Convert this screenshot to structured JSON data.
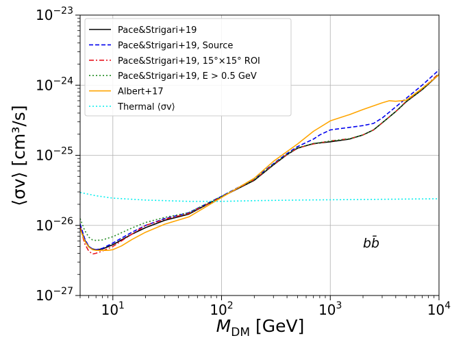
{
  "chart_data": {
    "type": "line",
    "xlabel": "M_DM [GeV]",
    "ylabel": "⟨σv⟩ [cm³/s]",
    "xscale": "log",
    "yscale": "log",
    "xlim": [
      5,
      10000
    ],
    "ylim": [
      1e-27,
      1e-23
    ],
    "grid": true,
    "legend_position": "top-left",
    "annotation": "bb̄",
    "x_ticks": [
      {
        "value": 10,
        "base": "10",
        "exp": "1"
      },
      {
        "value": 100,
        "base": "10",
        "exp": "2"
      },
      {
        "value": 1000,
        "base": "10",
        "exp": "3"
      },
      {
        "value": 10000,
        "base": "10",
        "exp": "4"
      }
    ],
    "y_ticks": [
      {
        "value": 1e-27,
        "base": "10",
        "exp": "−27"
      },
      {
        "value": 1e-26,
        "base": "10",
        "exp": "−26"
      },
      {
        "value": 1e-25,
        "base": "10",
        "exp": "−25"
      },
      {
        "value": 1e-24,
        "base": "10",
        "exp": "−24"
      },
      {
        "value": 1e-23,
        "base": "10",
        "exp": "−23"
      }
    ],
    "series": [
      {
        "name": "Pace&Strigari+19",
        "color": "#000000",
        "dash": "",
        "x": [
          5,
          5.5,
          6,
          6.5,
          7,
          8,
          10,
          15,
          20,
          30,
          50,
          100,
          200,
          300,
          400,
          500,
          700,
          1000,
          1500,
          2000,
          2500,
          3000,
          4000,
          5000,
          7000,
          10000
        ],
        "y": [
          9.5e-27,
          6.2e-27,
          5e-27,
          4.6e-27,
          4.5e-27,
          4.6e-27,
          5.3e-27,
          7.5e-27,
          9.3e-27,
          1.18e-26,
          1.45e-26,
          2.55e-26,
          4.4e-26,
          7.3e-26,
          1.02e-25,
          1.26e-25,
          1.47e-25,
          1.56e-25,
          1.7e-25,
          1.95e-25,
          2.3e-25,
          2.9e-25,
          4.2e-25,
          5.8e-25,
          8.6e-25,
          1.42e-24
        ]
      },
      {
        "name": "Pace&Strigari+19, Source",
        "color": "#0000ee",
        "dash": "6,3",
        "x": [
          5,
          5.5,
          6,
          6.5,
          7,
          8,
          10,
          15,
          20,
          30,
          50,
          100,
          200,
          300,
          400,
          500,
          700,
          800,
          1000,
          1500,
          2000,
          2500,
          3000,
          4000,
          5000,
          7000,
          10000
        ],
        "y": [
          1.05e-26,
          6.5e-27,
          5e-27,
          4.6e-27,
          4.5e-27,
          4.7e-27,
          5.6e-27,
          8e-27,
          1e-26,
          1.25e-26,
          1.52e-26,
          2.6e-26,
          4.6e-26,
          7.6e-26,
          1.06e-25,
          1.33e-25,
          1.7e-25,
          1.95e-25,
          2.3e-25,
          2.5e-25,
          2.65e-25,
          2.85e-25,
          3.4e-25,
          4.9e-25,
          6.5e-25,
          1e-24,
          1.65e-24
        ]
      },
      {
        "name": "Pace&Strigari+19, 15°×15° ROI",
        "color": "#e8131e",
        "dash": "7,3,2,3",
        "x": [
          5,
          5.5,
          6,
          6.5,
          7,
          8,
          10,
          15,
          20,
          30,
          50,
          100,
          200,
          300,
          400,
          500,
          700,
          1000,
          1500,
          2000,
          2500,
          3000,
          4000,
          5000,
          7000,
          10000
        ],
        "y": [
          9.5e-27,
          5.5e-27,
          4.3e-27,
          3.9e-27,
          4e-27,
          4.3e-27,
          5e-27,
          7.5e-27,
          1e-26,
          1.22e-26,
          1.48e-26,
          2.55e-26,
          4.5e-26,
          7.4e-26,
          1.03e-25,
          1.27e-25,
          1.45e-25,
          1.6e-25,
          1.72e-25,
          1.95e-25,
          2.3e-25,
          2.9e-25,
          4.2e-25,
          5.9e-25,
          8.8e-25,
          1.47e-24
        ]
      },
      {
        "name": "Pace&Strigari+19, E > 0.5 GeV",
        "color": "#228b22",
        "dash": "2,3",
        "x": [
          5,
          5.5,
          6,
          6.5,
          7,
          8,
          10,
          15,
          20,
          30,
          50,
          100,
          200,
          300,
          400,
          500,
          700,
          1000,
          1500,
          2000,
          2500,
          3000,
          4000,
          5000,
          7000,
          10000
        ],
        "y": [
          1.25e-26,
          8.5e-27,
          6.8e-27,
          6.2e-27,
          6.1e-27,
          6.2e-27,
          6.9e-27,
          9.2e-27,
          1.1e-26,
          1.3e-26,
          1.52e-26,
          2.6e-26,
          4.5e-26,
          7.5e-26,
          1.04e-25,
          1.28e-25,
          1.47e-25,
          1.6e-25,
          1.72e-25,
          1.95e-25,
          2.3e-25,
          2.9e-25,
          4.2e-25,
          5.9e-25,
          8.7e-25,
          1.45e-24
        ]
      },
      {
        "name": "Albert+17",
        "color": "#ffa500",
        "dash": "",
        "x": [
          5,
          5.5,
          6,
          6.5,
          7,
          8,
          9,
          10,
          12,
          15,
          20,
          30,
          50,
          100,
          200,
          300,
          500,
          700,
          1000,
          1500,
          2000,
          3000,
          3500,
          4000,
          5000,
          7000,
          10000
        ],
        "y": [
          9e-27,
          6e-27,
          4.9e-27,
          4.5e-27,
          4.4e-27,
          4.4e-27,
          4.4e-27,
          4.5e-27,
          5.1e-27,
          6.3e-27,
          8e-27,
          1.04e-26,
          1.32e-26,
          2.5e-26,
          4.7e-26,
          8.2e-26,
          1.45e-25,
          2.2e-25,
          3.1e-25,
          3.8e-25,
          4.5e-25,
          5.6e-25,
          6e-25,
          5.9e-25,
          6.1e-25,
          9e-25,
          1.4e-24
        ]
      },
      {
        "name": "Thermal ⟨σv⟩",
        "color": "#00eeee",
        "dash": "2,3",
        "x": [
          5,
          7,
          10,
          20,
          50,
          100,
          200,
          500,
          1000,
          10000
        ],
        "y": [
          2.95e-26,
          2.65e-26,
          2.45e-26,
          2.3e-26,
          2.2e-26,
          2.2e-26,
          2.25e-26,
          2.3e-26,
          2.32e-26,
          2.4e-26
        ]
      }
    ]
  }
}
